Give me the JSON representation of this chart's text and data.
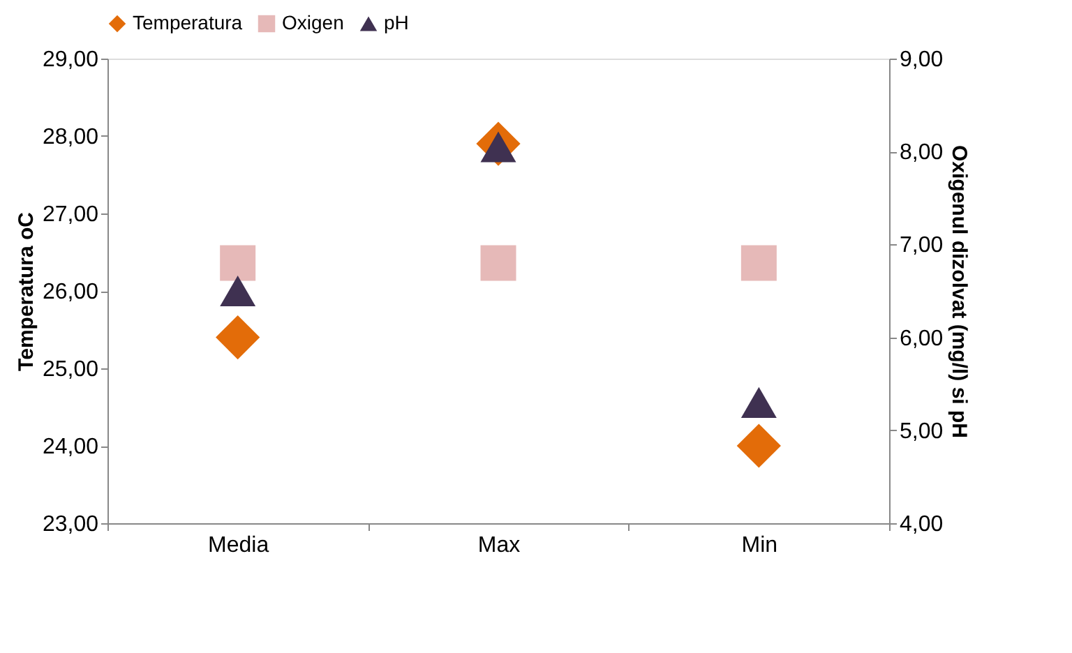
{
  "chart_data": {
    "type": "scatter",
    "categories": [
      "Media",
      "Max",
      "Min"
    ],
    "ylabel": "Temperatura oC",
    "y2label": "Oxigenul dizolvat (mg/l) si pH",
    "ylim": [
      23,
      29
    ],
    "yticks": [
      {
        "value": 23,
        "label": "23,00"
      },
      {
        "value": 24,
        "label": "24,00"
      },
      {
        "value": 25,
        "label": "25,00"
      },
      {
        "value": 26,
        "label": "26,00"
      },
      {
        "value": 27,
        "label": "27,00"
      },
      {
        "value": 28,
        "label": "28,00"
      },
      {
        "value": 29,
        "label": "29,00"
      }
    ],
    "y2lim": [
      4,
      9
    ],
    "y2ticks": [
      {
        "value": 4,
        "label": "4,00"
      },
      {
        "value": 5,
        "label": "5,00"
      },
      {
        "value": 6,
        "label": "6,00"
      },
      {
        "value": 7,
        "label": "7,00"
      },
      {
        "value": 8,
        "label": "8,00"
      },
      {
        "value": 9,
        "label": "9,00"
      }
    ],
    "series": [
      {
        "name": "Temperatura",
        "color": "#e36c09",
        "marker": "diamond",
        "values": [
          25.4,
          27.9,
          24.0
        ]
      },
      {
        "name": "Oxigen",
        "color": "#e6b9b8",
        "marker": "square",
        "axis": "y2",
        "values": [
          6.8,
          6.8,
          6.8
        ]
      },
      {
        "name": "pH",
        "color": "#3f3151",
        "marker": "triangle",
        "axis": "y2",
        "values": [
          6.5,
          8.05,
          5.3
        ]
      }
    ],
    "legend": "top",
    "grid": false
  }
}
